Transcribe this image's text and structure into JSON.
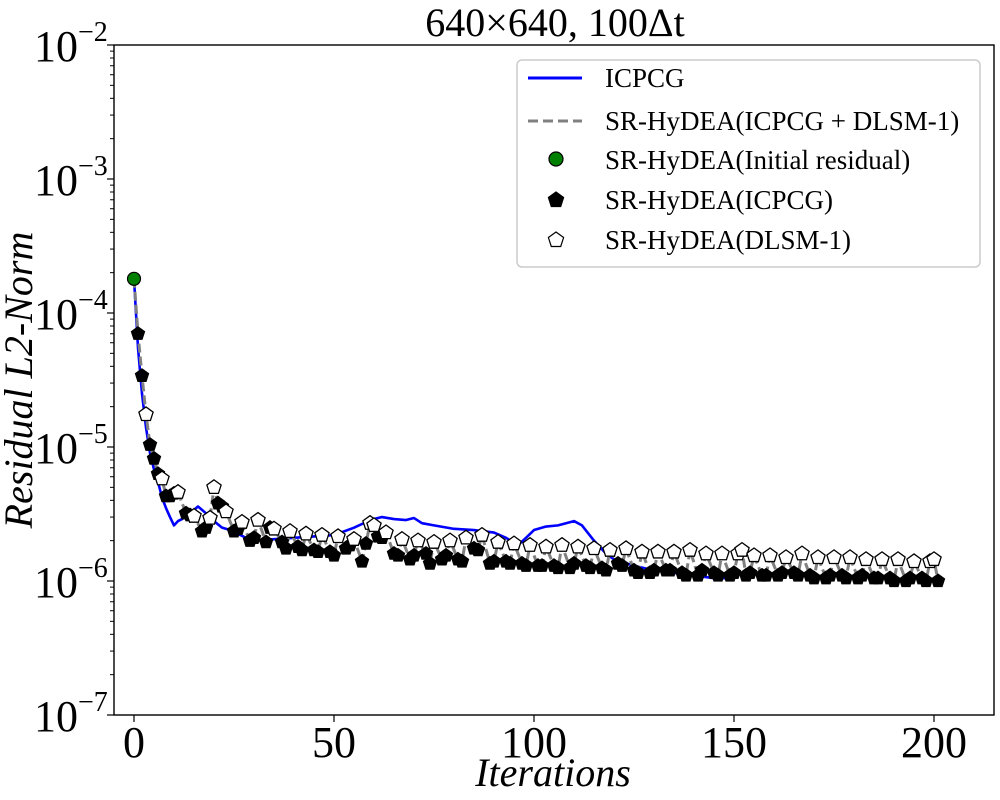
{
  "chart_data": {
    "type": "line",
    "title": "640×640, 100Δt",
    "xlabel": "Iterations",
    "ylabel": "Residual L2-Norm",
    "yscale": "log",
    "xlim": [
      -5,
      215
    ],
    "ylim": [
      1e-07,
      0.01
    ],
    "xticks": [
      0,
      50,
      100,
      150,
      200
    ],
    "yticks": [
      {
        "base": "10",
        "exp": "−7",
        "value": 1e-07
      },
      {
        "base": "10",
        "exp": "−6",
        "value": 1e-06
      },
      {
        "base": "10",
        "exp": "−5",
        "value": 1e-05
      },
      {
        "base": "10",
        "exp": "−4",
        "value": 0.0001
      },
      {
        "base": "10",
        "exp": "−3",
        "value": 0.001
      },
      {
        "base": "10",
        "exp": "−2",
        "value": 0.01
      }
    ],
    "legend": {
      "position": "top-right",
      "entries": [
        "ICPCG",
        "SR-HyDEA(ICPCG + DLSM-1)",
        "SR-HyDEA(Initial residual)",
        "SR-HyDEA(ICPCG)",
        "SR-HyDEA(DLSM-1)"
      ]
    },
    "series": [
      {
        "name": "ICPCG",
        "style": "line",
        "color": "#0000ff",
        "x": [
          0,
          1,
          2,
          3,
          4,
          5,
          6,
          7,
          8,
          9,
          10,
          11,
          12,
          14,
          16,
          18,
          20,
          22,
          24,
          26,
          28,
          30,
          35,
          40,
          45,
          50,
          55,
          58,
          60,
          62,
          65,
          68,
          70,
          72,
          75,
          80,
          85,
          90,
          93,
          96,
          98,
          100,
          103,
          106,
          110,
          112,
          115,
          118,
          120,
          125,
          130,
          135,
          140,
          145,
          150
        ],
        "y": [
          0.00018,
          5.5e-05,
          2.5e-05,
          1.4e-05,
          9e-06,
          6.8e-06,
          5.5e-06,
          4.2e-06,
          3.5e-06,
          3e-06,
          2.6e-06,
          2.8e-06,
          2.9e-06,
          3.2e-06,
          3.6e-06,
          3.2e-06,
          2.8e-06,
          2.5e-06,
          2.4e-06,
          2.25e-06,
          2.1e-06,
          2e-06,
          2.05e-06,
          2.1e-06,
          2.15e-06,
          2.2e-06,
          2.5e-06,
          2.75e-06,
          2.9e-06,
          3e-06,
          2.9e-06,
          2.85e-06,
          2.95e-06,
          2.7e-06,
          2.6e-06,
          2.45e-06,
          2.4e-06,
          2.3e-06,
          2.1e-06,
          1.85e-06,
          2.1e-06,
          2.4e-06,
          2.55e-06,
          2.6e-06,
          2.8e-06,
          2.6e-06,
          2e-06,
          1.6e-06,
          1.45e-06,
          1.3e-06,
          1.2e-06,
          1.15e-06,
          1.1e-06,
          1.05e-06,
          1.05e-06
        ]
      },
      {
        "name": "SR-HyDEA(Initial residual)",
        "style": "marker",
        "marker": "circle",
        "color": "#008000",
        "x": [
          0
        ],
        "y": [
          0.00018
        ]
      },
      {
        "name": "SR-HyDEA(ICPCG)",
        "style": "marker",
        "marker": "pentagon",
        "color": "#000000",
        "x": [
          1,
          2,
          4,
          5,
          6,
          8,
          9,
          10,
          13,
          14,
          17,
          18,
          21,
          22,
          25,
          26,
          29,
          30,
          33,
          34,
          37,
          38,
          41,
          42,
          45,
          46,
          49,
          50,
          53,
          54,
          57,
          58,
          61,
          62,
          65,
          66,
          69,
          70,
          73,
          74,
          77,
          78,
          81,
          82,
          85,
          86,
          89,
          90,
          93,
          94,
          97,
          98,
          101,
          102,
          105,
          106,
          109,
          110,
          113,
          114,
          117,
          118,
          121,
          122,
          125,
          126,
          129,
          130,
          133,
          134,
          137,
          138,
          141,
          142,
          145,
          146,
          149,
          150,
          153,
          154,
          157,
          158,
          161,
          162,
          165,
          166,
          169,
          170,
          173,
          174,
          177,
          178,
          181,
          182,
          185,
          186,
          189,
          190,
          193,
          194,
          197,
          198,
          201
        ],
        "y": [
          7e-05,
          3.4e-05,
          1.04e-05,
          8.2e-06,
          6.3e-06,
          4.3e-06,
          4.3e-06,
          4.5e-06,
          3.2e-06,
          3.1e-06,
          2.35e-06,
          2.5e-06,
          3.8e-06,
          3.6e-06,
          2.35e-06,
          2.45e-06,
          2e-06,
          2.1e-06,
          1.95e-06,
          2.5e-06,
          1.95e-06,
          1.75e-06,
          1.8e-06,
          1.7e-06,
          1.7e-06,
          1.65e-06,
          1.65e-06,
          1.55e-06,
          1.75e-06,
          1.85e-06,
          1.4e-06,
          1.9e-06,
          2.15e-06,
          2.1e-06,
          1.6e-06,
          1.55e-06,
          1.45e-06,
          1.55e-06,
          1.6e-06,
          1.35e-06,
          1.45e-06,
          1.55e-06,
          1.45e-06,
          1.4e-06,
          1.75e-06,
          1.7e-06,
          1.35e-06,
          1.4e-06,
          1.4e-06,
          1.35e-06,
          1.35e-06,
          1.3e-06,
          1.3e-06,
          1.3e-06,
          1.3e-06,
          1.25e-06,
          1.25e-06,
          1.35e-06,
          1.3e-06,
          1.25e-06,
          1.25e-06,
          1.2e-06,
          1.35e-06,
          1.3e-06,
          1.2e-06,
          1.15e-06,
          1.15e-06,
          1.2e-06,
          1.2e-06,
          1.2e-06,
          1.15e-06,
          1.1e-06,
          1.1e-06,
          1.2e-06,
          1.15e-06,
          1.1e-06,
          1.1e-06,
          1.15e-06,
          1.1e-06,
          1.15e-06,
          1.1e-06,
          1.1e-06,
          1.1e-06,
          1.15e-06,
          1.15e-06,
          1.1e-06,
          1.1e-06,
          1.05e-06,
          1.05e-06,
          1.1e-06,
          1.1e-06,
          1.05e-06,
          1.05e-06,
          1.1e-06,
          1.05e-06,
          1.05e-06,
          1.05e-06,
          1e-06,
          1e-06,
          1.05e-06,
          1.05e-06,
          1e-06,
          1e-06
        ]
      },
      {
        "name": "SR-HyDEA(DLSM-1)",
        "style": "marker",
        "marker": "pentagon-open",
        "color": "#000000",
        "x": [
          3,
          7,
          11,
          15,
          19,
          20,
          23,
          27,
          31,
          35,
          39,
          43,
          47,
          51,
          55,
          59,
          60,
          63,
          67,
          71,
          75,
          79,
          83,
          87,
          91,
          95,
          99,
          103,
          107,
          111,
          115,
          119,
          123,
          127,
          131,
          135,
          139,
          143,
          147,
          151,
          152,
          155,
          159,
          163,
          167,
          171,
          175,
          179,
          183,
          187,
          191,
          195,
          199,
          200
        ],
        "y": [
          1.75e-05,
          5.8e-06,
          4.6e-06,
          3.05e-06,
          2.95e-06,
          5e-06,
          3.3e-06,
          2.75e-06,
          2.85e-06,
          2.45e-06,
          2.35e-06,
          2.25e-06,
          2.2e-06,
          2.15e-06,
          2.05e-06,
          2.7e-06,
          2.6e-06,
          2.3e-06,
          2.05e-06,
          2e-06,
          1.95e-06,
          2e-06,
          2.1e-06,
          2.2e-06,
          1.95e-06,
          1.9e-06,
          1.85e-06,
          1.8e-06,
          1.85e-06,
          1.8e-06,
          1.75e-06,
          1.7e-06,
          1.75e-06,
          1.65e-06,
          1.65e-06,
          1.65e-06,
          1.7e-06,
          1.6e-06,
          1.6e-06,
          1.6e-06,
          1.7e-06,
          1.55e-06,
          1.55e-06,
          1.5e-06,
          1.6e-06,
          1.5e-06,
          1.5e-06,
          1.5e-06,
          1.45e-06,
          1.45e-06,
          1.45e-06,
          1.4e-06,
          1.4e-06,
          1.45e-06
        ]
      }
    ]
  }
}
